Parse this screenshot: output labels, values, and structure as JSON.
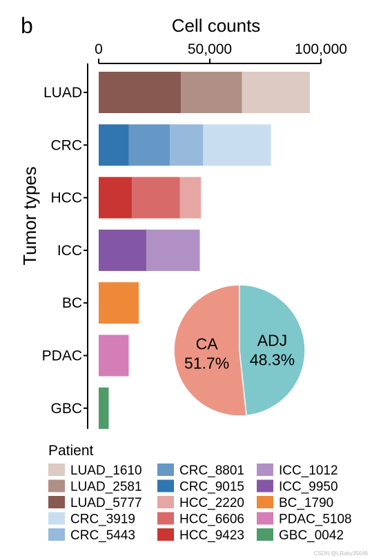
{
  "panel_label": "b",
  "watermark": "CSDN @LRaby35646",
  "chart_data": [
    {
      "type": "bar",
      "orientation": "horizontal",
      "stacked": true,
      "title": "",
      "xlabel": "Cell counts",
      "ylabel": "Tumor types",
      "xlim": [
        0,
        100000
      ],
      "xticks": [
        0,
        50000,
        100000
      ],
      "xtick_labels": [
        "0",
        "50,000",
        "100,000"
      ],
      "x_axis_position": "top",
      "grid": false,
      "categories": [
        "LUAD",
        "CRC",
        "HCC",
        "ICC",
        "BC",
        "PDAC",
        "GBC"
      ],
      "stacks": [
        {
          "category": "LUAD",
          "segments": [
            {
              "name": "LUAD_5777",
              "value": 37000,
              "color": "#875950"
            },
            {
              "name": "LUAD_2581",
              "value": 27500,
              "color": "#b08f86"
            },
            {
              "name": "LUAD_1610",
              "value": 30500,
              "color": "#dccac3"
            }
          ]
        },
        {
          "category": "CRC",
          "segments": [
            {
              "name": "CRC_9015",
              "value": 13500,
              "color": "#3175b1"
            },
            {
              "name": "CRC_8801",
              "value": 18500,
              "color": "#6598c7"
            },
            {
              "name": "CRC_5443",
              "value": 15000,
              "color": "#96b9dc"
            },
            {
              "name": "CRC_3919",
              "value": 30500,
              "color": "#c8def0"
            }
          ]
        },
        {
          "category": "HCC",
          "segments": [
            {
              "name": "HCC_9423",
              "value": 15000,
              "color": "#c93532"
            },
            {
              "name": "HCC_6606",
              "value": 21500,
              "color": "#d96a6a"
            },
            {
              "name": "HCC_2220",
              "value": 9500,
              "color": "#e5a6a4"
            }
          ]
        },
        {
          "category": "ICC",
          "segments": [
            {
              "name": "ICC_9950",
              "value": 21500,
              "color": "#8457a6"
            },
            {
              "name": "ICC_1012",
              "value": 24000,
              "color": "#b190c6"
            }
          ]
        },
        {
          "category": "BC",
          "segments": [
            {
              "name": "BC_1790",
              "value": 18000,
              "color": "#ef8837"
            }
          ]
        },
        {
          "category": "PDAC",
          "segments": [
            {
              "name": "PDAC_5108",
              "value": 13500,
              "color": "#d57db6"
            }
          ]
        },
        {
          "category": "GBC",
          "segments": [
            {
              "name": "GBC_0042",
              "value": 4500,
              "color": "#4f9b69"
            }
          ]
        }
      ]
    },
    {
      "type": "pie",
      "title": "",
      "slices": [
        {
          "label": "CA",
          "value": 51.7,
          "value_label": "51.7%",
          "color": "#ec9585"
        },
        {
          "label": "ADJ",
          "value": 48.3,
          "value_label": "48.3%",
          "color": "#7ec8cb"
        }
      ]
    }
  ],
  "legend": {
    "title": "Patient",
    "placement": "bottom",
    "columns": [
      [
        {
          "label": "LUAD_1610",
          "color": "#dccac3"
        },
        {
          "label": "LUAD_2581",
          "color": "#b08f86"
        },
        {
          "label": "LUAD_5777",
          "color": "#875950"
        },
        {
          "label": "CRC_3919",
          "color": "#c8def0"
        },
        {
          "label": "CRC_5443",
          "color": "#96b9dc"
        }
      ],
      [
        {
          "label": "CRC_8801",
          "color": "#6598c7"
        },
        {
          "label": "CRC_9015",
          "color": "#3175b1"
        },
        {
          "label": "HCC_2220",
          "color": "#e5a6a4"
        },
        {
          "label": "HCC_6606",
          "color": "#d96a6a"
        },
        {
          "label": "HCC_9423",
          "color": "#c93532"
        }
      ],
      [
        {
          "label": "ICC_1012",
          "color": "#b190c6"
        },
        {
          "label": "ICC_9950",
          "color": "#8457a6"
        },
        {
          "label": "BC_1790",
          "color": "#ef8837"
        },
        {
          "label": "PDAC_5108",
          "color": "#d57db6"
        },
        {
          "label": "GBC_0042",
          "color": "#4f9b69"
        }
      ]
    ]
  }
}
